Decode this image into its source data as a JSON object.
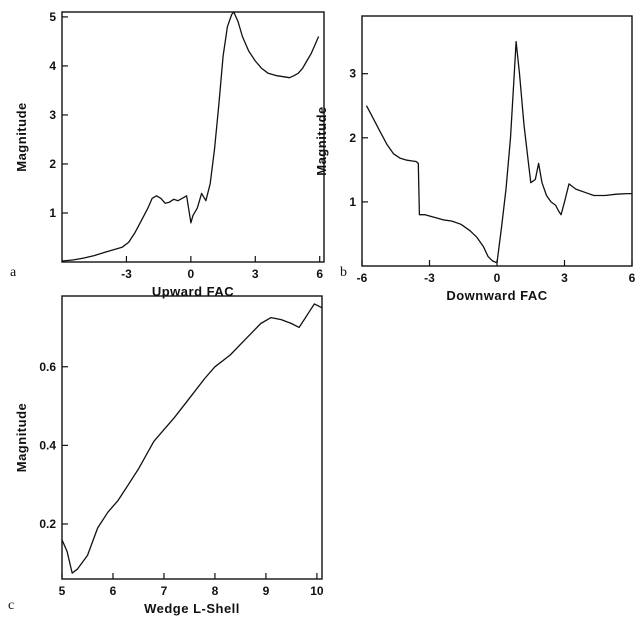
{
  "chart_data": [
    {
      "panel": "a",
      "type": "line",
      "xlabel": "Upward FAC",
      "ylabel": "Magnitude",
      "xlim": [
        -6,
        6.2
      ],
      "ylim": [
        0,
        5.1
      ],
      "xticks": [
        -3,
        0,
        3,
        6
      ],
      "yticks": [
        1,
        2,
        3,
        4,
        5
      ],
      "grid": false,
      "series": [
        {
          "x": [
            -6,
            -5.5,
            -5,
            -4.5,
            -4,
            -3.6,
            -3.2,
            -2.9,
            -2.6,
            -2.3,
            -2.0,
            -1.8,
            -1.6,
            -1.4,
            -1.2,
            -1.0,
            -0.8,
            -0.6,
            -0.4,
            -0.2,
            0.0,
            0.1,
            0.3,
            0.5,
            0.7,
            0.9,
            1.1,
            1.3,
            1.5,
            1.7,
            1.9,
            2.0,
            2.2,
            2.4,
            2.7,
            3.0,
            3.3,
            3.6,
            4.0,
            4.3,
            4.6,
            4.8,
            5.0,
            5.2,
            5.4,
            5.6,
            5.8,
            5.95
          ],
          "y": [
            0.02,
            0.04,
            0.08,
            0.13,
            0.2,
            0.25,
            0.3,
            0.4,
            0.6,
            0.85,
            1.1,
            1.3,
            1.35,
            1.3,
            1.2,
            1.22,
            1.28,
            1.25,
            1.3,
            1.35,
            0.8,
            0.95,
            1.1,
            1.4,
            1.25,
            1.6,
            2.3,
            3.2,
            4.2,
            4.8,
            5.05,
            5.1,
            4.9,
            4.6,
            4.3,
            4.1,
            3.95,
            3.85,
            3.8,
            3.78,
            3.76,
            3.8,
            3.85,
            3.95,
            4.1,
            4.25,
            4.45,
            4.6
          ]
        }
      ]
    },
    {
      "panel": "b",
      "type": "line",
      "xlabel": "Downward FAC",
      "ylabel": "Magnitude",
      "xlim": [
        -6,
        6
      ],
      "ylim": [
        0,
        3.9
      ],
      "xticks": [
        -6,
        -3,
        0,
        3,
        6
      ],
      "yticks": [
        1,
        2,
        3
      ],
      "grid": false,
      "series": [
        {
          "x": [
            -5.8,
            -5.5,
            -5.2,
            -4.9,
            -4.6,
            -4.3,
            -4.0,
            -3.8,
            -3.6,
            -3.5,
            -3.45,
            -3.2,
            -3.0,
            -2.7,
            -2.4,
            -2.0,
            -1.6,
            -1.2,
            -0.9,
            -0.6,
            -0.4,
            -0.2,
            0.0,
            0.2,
            0.4,
            0.6,
            0.75,
            0.85,
            1.0,
            1.2,
            1.4,
            1.5,
            1.7,
            1.85,
            2.0,
            2.2,
            2.4,
            2.6,
            2.75,
            2.85,
            3.0,
            3.2,
            3.5,
            3.9,
            4.3,
            4.8,
            5.3,
            5.8,
            6.0
          ],
          "y": [
            2.5,
            2.3,
            2.1,
            1.9,
            1.75,
            1.68,
            1.65,
            1.64,
            1.63,
            1.6,
            0.8,
            0.8,
            0.78,
            0.75,
            0.72,
            0.7,
            0.65,
            0.55,
            0.45,
            0.3,
            0.15,
            0.08,
            0.05,
            0.6,
            1.2,
            2.0,
            2.9,
            3.5,
            3.0,
            2.2,
            1.6,
            1.3,
            1.35,
            1.6,
            1.3,
            1.1,
            1.0,
            0.95,
            0.85,
            0.8,
            1.0,
            1.28,
            1.2,
            1.15,
            1.1,
            1.1,
            1.12,
            1.13,
            1.13
          ]
        }
      ]
    },
    {
      "panel": "c",
      "type": "line",
      "xlabel": "Wedge L-Shell",
      "ylabel": "Magnitude",
      "xlim": [
        5,
        10.1
      ],
      "ylim": [
        0.06,
        0.78
      ],
      "xticks": [
        5,
        6,
        7,
        8,
        9,
        10
      ],
      "yticks": [
        0.2,
        0.4,
        0.6
      ],
      "grid": false,
      "series": [
        {
          "x": [
            5.0,
            5.1,
            5.2,
            5.3,
            5.5,
            5.7,
            5.9,
            6.1,
            6.3,
            6.5,
            6.8,
            7.0,
            7.2,
            7.5,
            7.8,
            8.0,
            8.3,
            8.6,
            8.9,
            9.1,
            9.3,
            9.5,
            9.65,
            9.75,
            9.85,
            9.95,
            10.1
          ],
          "y": [
            0.16,
            0.13,
            0.075,
            0.085,
            0.12,
            0.19,
            0.23,
            0.26,
            0.3,
            0.34,
            0.41,
            0.44,
            0.47,
            0.52,
            0.57,
            0.6,
            0.63,
            0.67,
            0.71,
            0.725,
            0.72,
            0.71,
            0.7,
            0.72,
            0.74,
            0.76,
            0.75
          ]
        }
      ]
    }
  ],
  "labels": {
    "a": "a",
    "b": "b",
    "c": "c"
  }
}
